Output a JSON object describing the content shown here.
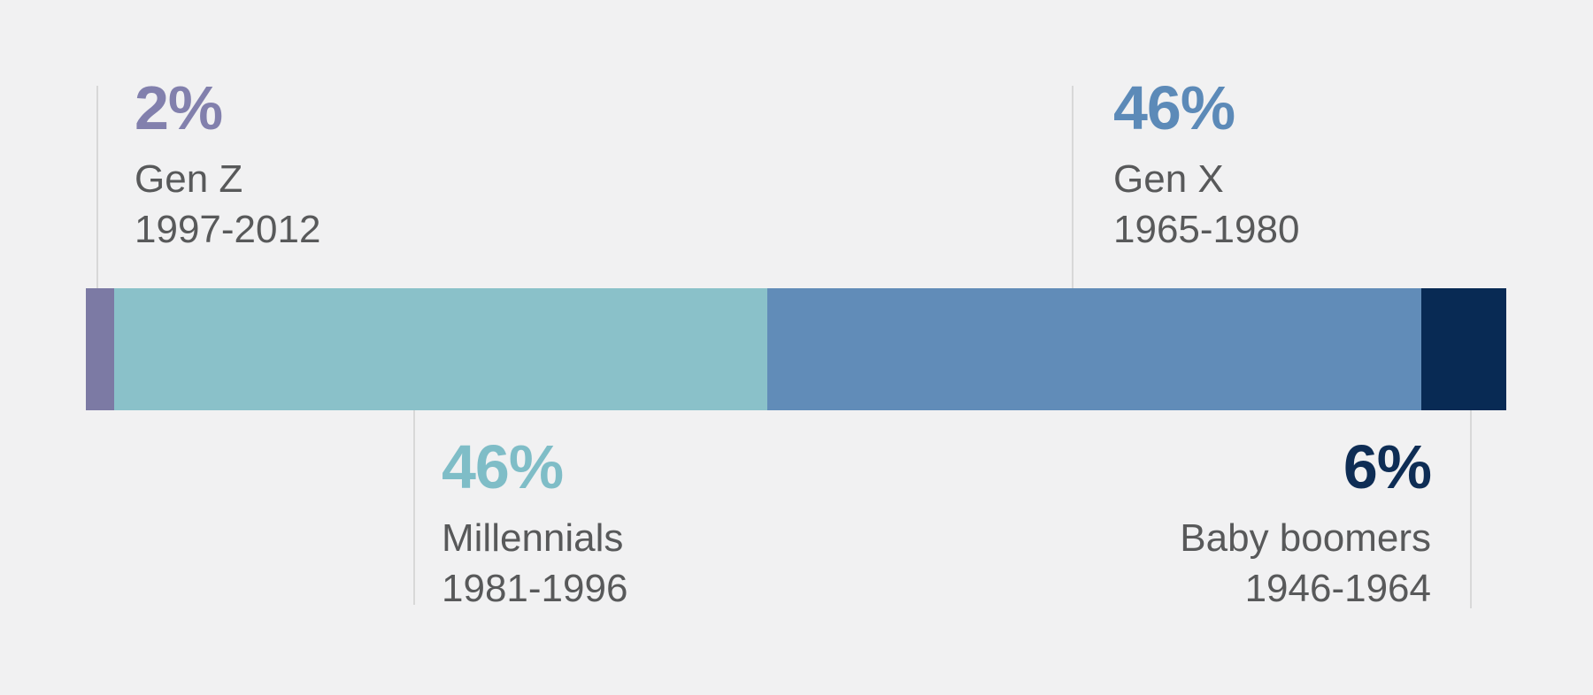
{
  "chart_data": {
    "type": "bar",
    "orientation": "horizontal-stacked",
    "title": "",
    "unit": "percent",
    "categories": [
      "Gen Z",
      "Millennials",
      "Gen X",
      "Baby boomers"
    ],
    "values": [
      2,
      46,
      46,
      6
    ],
    "segments": [
      {
        "label": "Gen Z",
        "years": "1997-2012",
        "percent": "2%",
        "value": 2,
        "bar_color": "#7c7aa4",
        "text_color": "#8280ad",
        "label_side": "above"
      },
      {
        "label": "Millennials",
        "years": "1981-1996",
        "percent": "46%",
        "value": 46,
        "bar_color": "#8ac1c9",
        "text_color": "#7fbdc7",
        "label_side": "below"
      },
      {
        "label": "Gen X",
        "years": "1965-1980",
        "percent": "46%",
        "value": 46,
        "bar_color": "#618cb8",
        "text_color": "#5c8ab8",
        "label_side": "above"
      },
      {
        "label": "Baby boomers",
        "years": "1946-1964",
        "percent": "6%",
        "value": 6,
        "bar_color": "#082a54",
        "text_color": "#0e2d55",
        "label_side": "below"
      }
    ],
    "styles": {
      "background": "#f1f1f2",
      "body_text_color": "#58595a",
      "connector_color": "#d8d8d8"
    },
    "legend": "none",
    "grid": "off"
  }
}
